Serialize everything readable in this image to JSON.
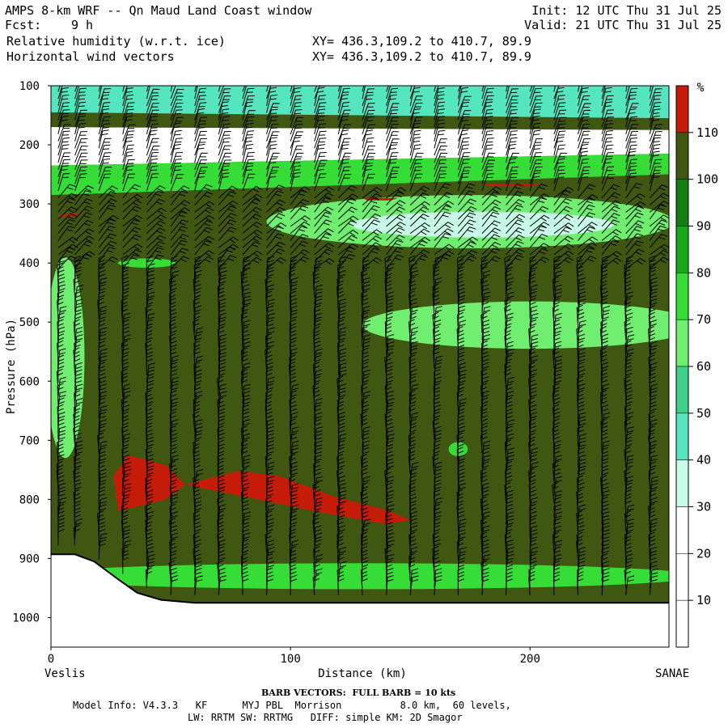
{
  "header": {
    "title": "AMPS 8-km WRF -- Qn Maud Land Coast window",
    "fcst_label": "Fcst:",
    "fcst_value": "9 h",
    "field1": "Relative humidity (w.r.t. ice)",
    "field2": "Horizontal wind vectors",
    "xy1": "XY= 436.3,109.2 to 410.7, 89.9",
    "xy2": "XY= 436.3,109.2 to 410.7, 89.9",
    "init": "Init: 12 UTC Thu 31 Jul 25",
    "valid": "Valid: 21 UTC Thu 31 Jul 25"
  },
  "footer": {
    "barb": "BARB VECTORS:  FULL BARB = 10 kts",
    "model": "Model Info: V4.3.3   KF      MYJ PBL  Morrison          8.0 km,  60 levels,",
    "phys": "LW: RRTM SW: RRTMG   DIFF: simple KM: 2D Smagor"
  },
  "chart_data": {
    "type": "heatmap",
    "ylabel": "Pressure (hPa)",
    "xlabel": "Distance (km)",
    "left_label": "Veslis",
    "right_label": "SANAE",
    "x_ticks": [
      0,
      100,
      200
    ],
    "xlim": [
      0,
      258
    ],
    "y_ticks": [
      100,
      200,
      300,
      400,
      500,
      600,
      700,
      800,
      900,
      1000
    ],
    "ylim": [
      1050,
      100
    ],
    "colorbar": {
      "unit": "%",
      "levels": [
        10,
        20,
        30,
        40,
        50,
        60,
        70,
        80,
        90,
        100,
        110
      ],
      "colors": [
        "#ffffff",
        "#ffffff",
        "#ffffff",
        "#c8fae8",
        "#55e6c0",
        "#3fd08c",
        "#70ee70",
        "#36dd36",
        "#17a817",
        "#137f13",
        "#3f5710",
        "#c41c08"
      ]
    },
    "terrain": [
      [
        0,
        893
      ],
      [
        10,
        893
      ],
      [
        18,
        905
      ],
      [
        28,
        935
      ],
      [
        36,
        958
      ],
      [
        46,
        970
      ],
      [
        60,
        975
      ],
      [
        258,
        975
      ]
    ],
    "layers": [
      {
        "name": "upper-moist",
        "p_top": [
          100,
          100
        ],
        "p_bot": [
          145,
          155
        ],
        "value": 40
      },
      {
        "name": "dry-band",
        "p_top": [
          170,
          175
        ],
        "p_bot": [
          235,
          215
        ],
        "value": 20
      },
      {
        "name": "green-transition",
        "p_top": [
          235,
          215
        ],
        "p_bot": [
          285,
          250
        ],
        "value": 70
      },
      {
        "name": "moist-mid",
        "p_top": [
          285,
          250
        ],
        "p_bot": [
          895,
          975
        ],
        "value": 105
      }
    ],
    "features": [
      {
        "name": "dry-lens-upper",
        "cx": 175,
        "cp": 330,
        "rx": 85,
        "rp": 45,
        "value": 60
      },
      {
        "name": "dry-lens-core",
        "cx": 180,
        "cp": 335,
        "rx": 55,
        "rp": 22,
        "value": 35
      },
      {
        "name": "dry-pocket-400",
        "cx": 40,
        "cp": 400,
        "rx": 12,
        "rp": 8,
        "value": 70
      },
      {
        "name": "mid-dry-band",
        "cx": 200,
        "cp": 505,
        "rx": 70,
        "rp": 40,
        "value": 65
      },
      {
        "name": "left-dry-column",
        "cx": 6,
        "cp": 560,
        "rx": 8,
        "rp": 170,
        "value": 65
      },
      {
        "name": "low-dry-band",
        "cx": 130,
        "cp": 930,
        "rx": 140,
        "rp": 22,
        "value": 70
      },
      {
        "name": "small-pocket-700",
        "cx": 170,
        "cp": 715,
        "rx": 4,
        "rp": 12,
        "value": 75
      }
    ],
    "supersat": [
      {
        "name": "supersat-blob-1",
        "points": [
          [
            26,
            760
          ],
          [
            32,
            725
          ],
          [
            48,
            742
          ],
          [
            56,
            775
          ],
          [
            48,
            800
          ],
          [
            28,
            820
          ]
        ],
        "value": 115
      },
      {
        "name": "supersat-blob-2",
        "points": [
          [
            56,
            775
          ],
          [
            78,
            752
          ],
          [
            95,
            760
          ],
          [
            118,
            795
          ],
          [
            140,
            818
          ],
          [
            150,
            835
          ],
          [
            140,
            842
          ],
          [
            110,
            820
          ],
          [
            80,
            795
          ]
        ],
        "value": 115
      },
      {
        "name": "supersat-streak-1",
        "points": [
          [
            3,
            318
          ],
          [
            12,
            316
          ],
          [
            10,
            322
          ],
          [
            3,
            322
          ]
        ],
        "value": 115
      },
      {
        "name": "supersat-streak-2",
        "points": [
          [
            130,
            290
          ],
          [
            145,
            290
          ],
          [
            142,
            294
          ],
          [
            132,
            294
          ]
        ],
        "value": 115
      },
      {
        "name": "supersat-streak-3",
        "points": [
          [
            180,
            267
          ],
          [
            205,
            267
          ],
          [
            200,
            270
          ],
          [
            184,
            270
          ]
        ],
        "value": 115
      }
    ],
    "barb_columns_km": [
      3,
      10,
      20,
      30,
      40,
      50,
      60,
      70,
      80,
      90,
      100,
      110,
      120,
      130,
      140,
      150,
      160,
      170,
      180,
      190,
      200,
      210,
      220,
      230,
      240,
      250
    ]
  }
}
